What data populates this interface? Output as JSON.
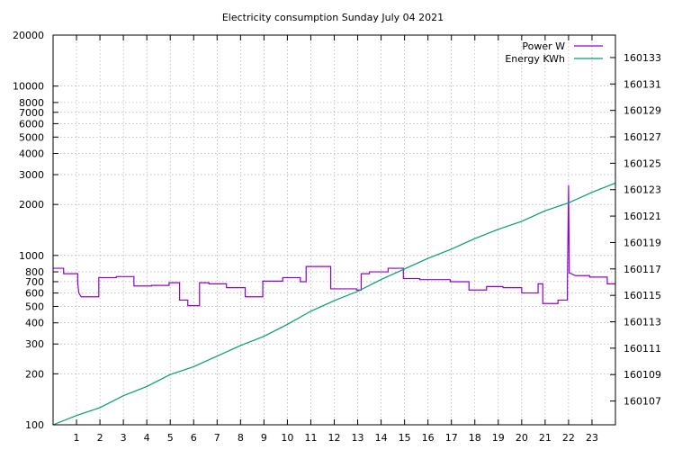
{
  "chart_data": {
    "type": "line",
    "title": "Electricity consumption Sunday July 04 2021",
    "x": {
      "range": [
        0,
        24
      ],
      "ticks": [
        1,
        2,
        3,
        4,
        5,
        6,
        7,
        8,
        9,
        10,
        11,
        12,
        13,
        14,
        15,
        16,
        17,
        18,
        19,
        20,
        21,
        22,
        23
      ]
    },
    "y_left": {
      "scale": "log",
      "range": [
        100,
        20000
      ],
      "ticks": [
        100,
        200,
        300,
        400,
        500,
        600,
        700,
        800,
        1000,
        2000,
        3000,
        4000,
        5000,
        6000,
        7000,
        8000,
        10000,
        20000
      ]
    },
    "y_right": {
      "scale": "linear",
      "range": [
        160105.2,
        160134.7
      ],
      "ticks": [
        160107,
        160109,
        160111,
        160113,
        160115,
        160117,
        160119,
        160121,
        160123,
        160125,
        160127,
        160129,
        160131,
        160133
      ]
    },
    "grid": true,
    "legend": "top-right",
    "series": [
      {
        "name": "Power W",
        "axis": "left",
        "color": "#9400d3",
        "points": [
          [
            0.0,
            840
          ],
          [
            0.45,
            840
          ],
          [
            0.45,
            780
          ],
          [
            1.05,
            780
          ],
          [
            1.05,
            690
          ],
          [
            1.1,
            600
          ],
          [
            1.2,
            570
          ],
          [
            1.95,
            570
          ],
          [
            1.95,
            740
          ],
          [
            2.7,
            740
          ],
          [
            2.7,
            750
          ],
          [
            3.45,
            750
          ],
          [
            3.45,
            660
          ],
          [
            4.2,
            660
          ],
          [
            4.2,
            665
          ],
          [
            4.95,
            665
          ],
          [
            4.95,
            690
          ],
          [
            5.4,
            690
          ],
          [
            5.4,
            545
          ],
          [
            5.75,
            545
          ],
          [
            5.75,
            505
          ],
          [
            6.25,
            505
          ],
          [
            6.25,
            690
          ],
          [
            6.65,
            690
          ],
          [
            6.65,
            680
          ],
          [
            7.4,
            680
          ],
          [
            7.4,
            645
          ],
          [
            8.2,
            645
          ],
          [
            8.2,
            570
          ],
          [
            8.95,
            570
          ],
          [
            8.95,
            705
          ],
          [
            9.8,
            705
          ],
          [
            9.8,
            740
          ],
          [
            10.55,
            740
          ],
          [
            10.55,
            700
          ],
          [
            10.8,
            700
          ],
          [
            10.8,
            860
          ],
          [
            11.85,
            860
          ],
          [
            11.85,
            635
          ],
          [
            12.95,
            635
          ],
          [
            12.95,
            625
          ],
          [
            13.15,
            625
          ],
          [
            13.15,
            780
          ],
          [
            13.5,
            780
          ],
          [
            13.5,
            800
          ],
          [
            14.3,
            800
          ],
          [
            14.3,
            840
          ],
          [
            14.95,
            840
          ],
          [
            14.95,
            730
          ],
          [
            15.65,
            730
          ],
          [
            15.65,
            720
          ],
          [
            16.95,
            720
          ],
          [
            16.95,
            700
          ],
          [
            17.75,
            700
          ],
          [
            17.75,
            625
          ],
          [
            18.5,
            625
          ],
          [
            18.5,
            655
          ],
          [
            19.2,
            655
          ],
          [
            19.2,
            645
          ],
          [
            20.0,
            645
          ],
          [
            20.0,
            600
          ],
          [
            20.7,
            600
          ],
          [
            20.7,
            680
          ],
          [
            20.9,
            680
          ],
          [
            20.9,
            520
          ],
          [
            21.55,
            520
          ],
          [
            21.55,
            545
          ],
          [
            21.95,
            545
          ],
          [
            21.95,
            690
          ],
          [
            22.0,
            2600
          ],
          [
            22.03,
            790
          ],
          [
            22.2,
            770
          ],
          [
            22.3,
            760
          ],
          [
            22.9,
            760
          ],
          [
            22.9,
            745
          ],
          [
            23.65,
            745
          ],
          [
            23.65,
            680
          ],
          [
            24.0,
            680
          ]
        ]
      },
      {
        "name": "Energy KWh",
        "axis": "right",
        "color": "#009e73",
        "points": [
          [
            0.0,
            160105.2
          ],
          [
            1.0,
            160105.9
          ],
          [
            2.0,
            160106.5
          ],
          [
            3.0,
            160107.4
          ],
          [
            4.0,
            160108.1
          ],
          [
            5.0,
            160109.0
          ],
          [
            6.0,
            160109.6
          ],
          [
            7.0,
            160110.4
          ],
          [
            8.0,
            160111.2
          ],
          [
            9.0,
            160111.9
          ],
          [
            10.0,
            160112.8
          ],
          [
            11.0,
            160113.8
          ],
          [
            12.0,
            160114.6
          ],
          [
            13.0,
            160115.3
          ],
          [
            14.0,
            160116.2
          ],
          [
            15.0,
            160117.0
          ],
          [
            16.0,
            160117.8
          ],
          [
            17.0,
            160118.5
          ],
          [
            18.0,
            160119.3
          ],
          [
            19.0,
            160120.0
          ],
          [
            20.0,
            160120.6
          ],
          [
            21.0,
            160121.4
          ],
          [
            22.0,
            160122.0
          ],
          [
            23.0,
            160122.8
          ],
          [
            24.0,
            160123.5
          ]
        ]
      }
    ]
  }
}
